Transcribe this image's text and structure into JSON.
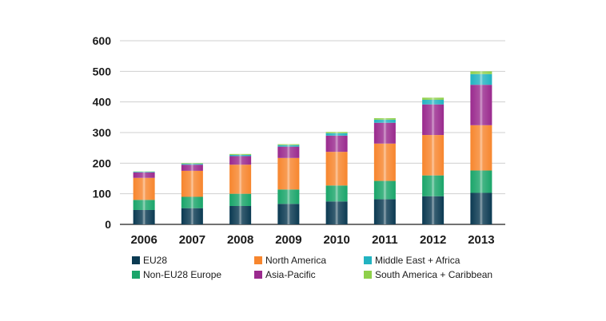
{
  "chart_data": {
    "type": "bar",
    "stacked": true,
    "title": "",
    "xlabel": "",
    "ylabel": "",
    "categories": [
      "2006",
      "2007",
      "2008",
      "2009",
      "2010",
      "2011",
      "2012",
      "2013"
    ],
    "ylim": [
      0,
      600
    ],
    "yticks": [
      "0",
      "100",
      "200",
      "300",
      "400",
      "500",
      "600"
    ],
    "grid": "horizontal",
    "legend_position": "bottom",
    "series": [
      {
        "name": "EU28",
        "color": "#0b3a52",
        "values": [
          47,
          53,
          60,
          67,
          75,
          82,
          92,
          103
        ]
      },
      {
        "name": "Non-EU28 Europe",
        "color": "#1aa56a",
        "values": [
          33,
          37,
          40,
          47,
          52,
          60,
          68,
          73
        ]
      },
      {
        "name": "North America",
        "color": "#f7862e",
        "values": [
          72,
          85,
          95,
          103,
          110,
          122,
          132,
          148
        ]
      },
      {
        "name": "Asia-Pacific",
        "color": "#9a2a8e",
        "values": [
          18,
          20,
          28,
          37,
          53,
          68,
          100,
          132
        ]
      },
      {
        "name": "Middle East + Africa",
        "color": "#22b3c1",
        "values": [
          2,
          3,
          4,
          5,
          8,
          10,
          15,
          35
        ]
      },
      {
        "name": "South America + Caribbean",
        "color": "#8fd04a",
        "values": [
          1,
          2,
          3,
          3,
          4,
          5,
          7,
          9
        ]
      }
    ],
    "legend_order": [
      "EU28",
      "North America",
      "Middle East + Africa",
      "Non-EU28 Europe",
      "Asia-Pacific",
      "South America + Caribbean"
    ]
  }
}
